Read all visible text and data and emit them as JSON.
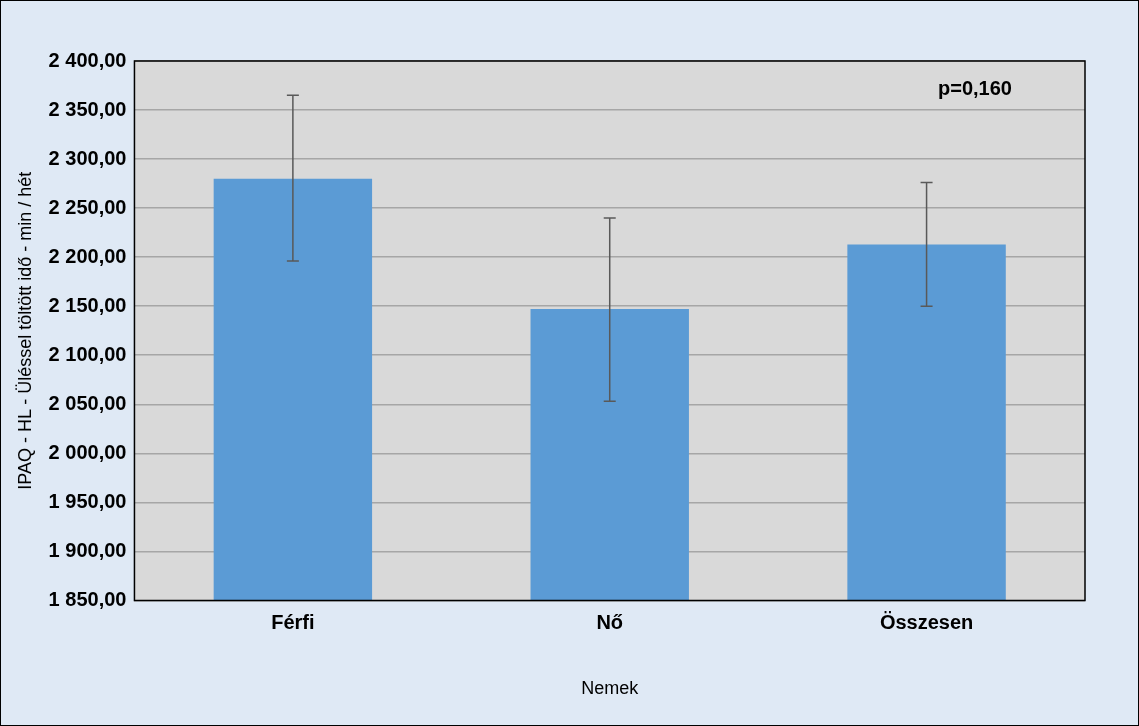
{
  "chart_data": {
    "type": "bar",
    "xlabel": "Nemek",
    "ylabel": "IPAQ - HL - Üléssel töltött idő - min / hét",
    "categories": [
      "Férfi",
      "Nő",
      "Összesen"
    ],
    "values": [
      2280,
      2147,
      2213
    ],
    "errors": [
      [
        2196,
        2365
      ],
      [
        2053,
        2240
      ],
      [
        2150,
        2276
      ]
    ],
    "color": "#5b9bd5",
    "ylim": [
      1850,
      2400
    ],
    "yticks": [
      {
        "value": 1850,
        "label": "1 850,00"
      },
      {
        "value": 1900,
        "label": "1 900,00"
      },
      {
        "value": 1950,
        "label": "1 950,00"
      },
      {
        "value": 2000,
        "label": "2 000,00"
      },
      {
        "value": 2050,
        "label": "2 050,00"
      },
      {
        "value": 2100,
        "label": "2 100,00"
      },
      {
        "value": 2150,
        "label": "2 150,00"
      },
      {
        "value": 2200,
        "label": "2 200,00"
      },
      {
        "value": 2250,
        "label": "2 250,00"
      },
      {
        "value": 2300,
        "label": "2 300,00"
      },
      {
        "value": 2350,
        "label": "2 350,00"
      },
      {
        "value": 2400,
        "label": "2 400,00"
      }
    ],
    "grid": "y",
    "annotations": [
      "p=0,160"
    ]
  }
}
